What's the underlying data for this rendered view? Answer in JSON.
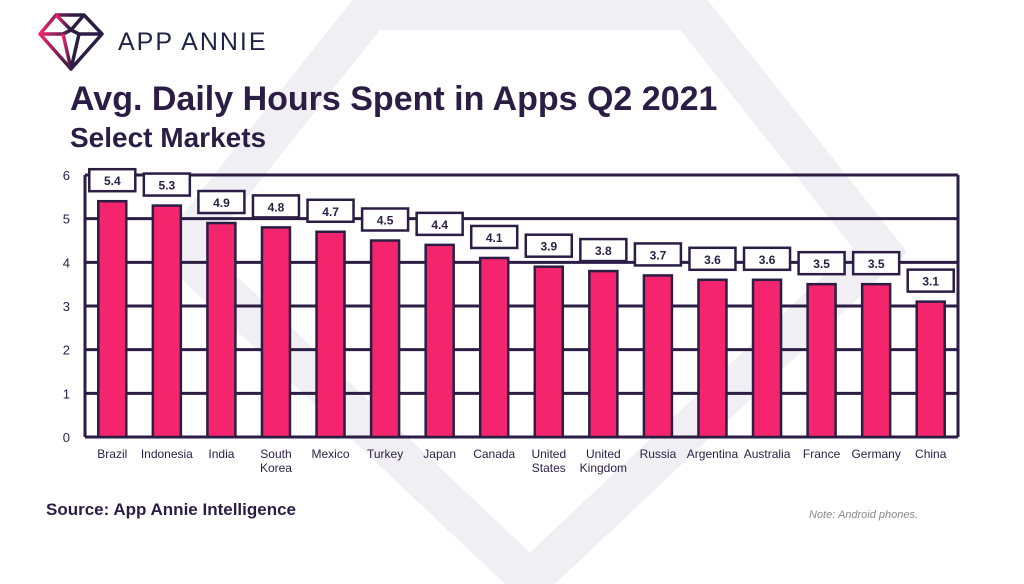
{
  "brand": {
    "name": "APP ANNIE",
    "logo_icon": "diamond-icon"
  },
  "header": {
    "title": "Avg. Daily Hours Spent in Apps Q2 2021",
    "subtitle": "Select Markets"
  },
  "footer": {
    "source": "Source: App Annie Intelligence",
    "note": "Note: Android phones."
  },
  "colors": {
    "bar": "#f4256d",
    "outline": "#2b1d44"
  },
  "chart_data": {
    "type": "bar",
    "title": "Avg. Daily Hours Spent in Apps Q2 2021",
    "subtitle": "Select Markets",
    "categories": [
      "Brazil",
      "Indonesia",
      "India",
      "South Korea",
      "Mexico",
      "Turkey",
      "Japan",
      "Canada",
      "United States",
      "United Kingdom",
      "Russia",
      "Argentina",
      "Australia",
      "France",
      "Germany",
      "China"
    ],
    "values": [
      5.4,
      5.3,
      4.9,
      4.8,
      4.7,
      4.5,
      4.4,
      4.1,
      3.9,
      3.8,
      3.7,
      3.6,
      3.6,
      3.5,
      3.5,
      3.1
    ],
    "ylim": [
      0,
      6
    ],
    "yticks": [
      0,
      1,
      2,
      3,
      4,
      5,
      6
    ],
    "grid": true,
    "legend": "none"
  }
}
